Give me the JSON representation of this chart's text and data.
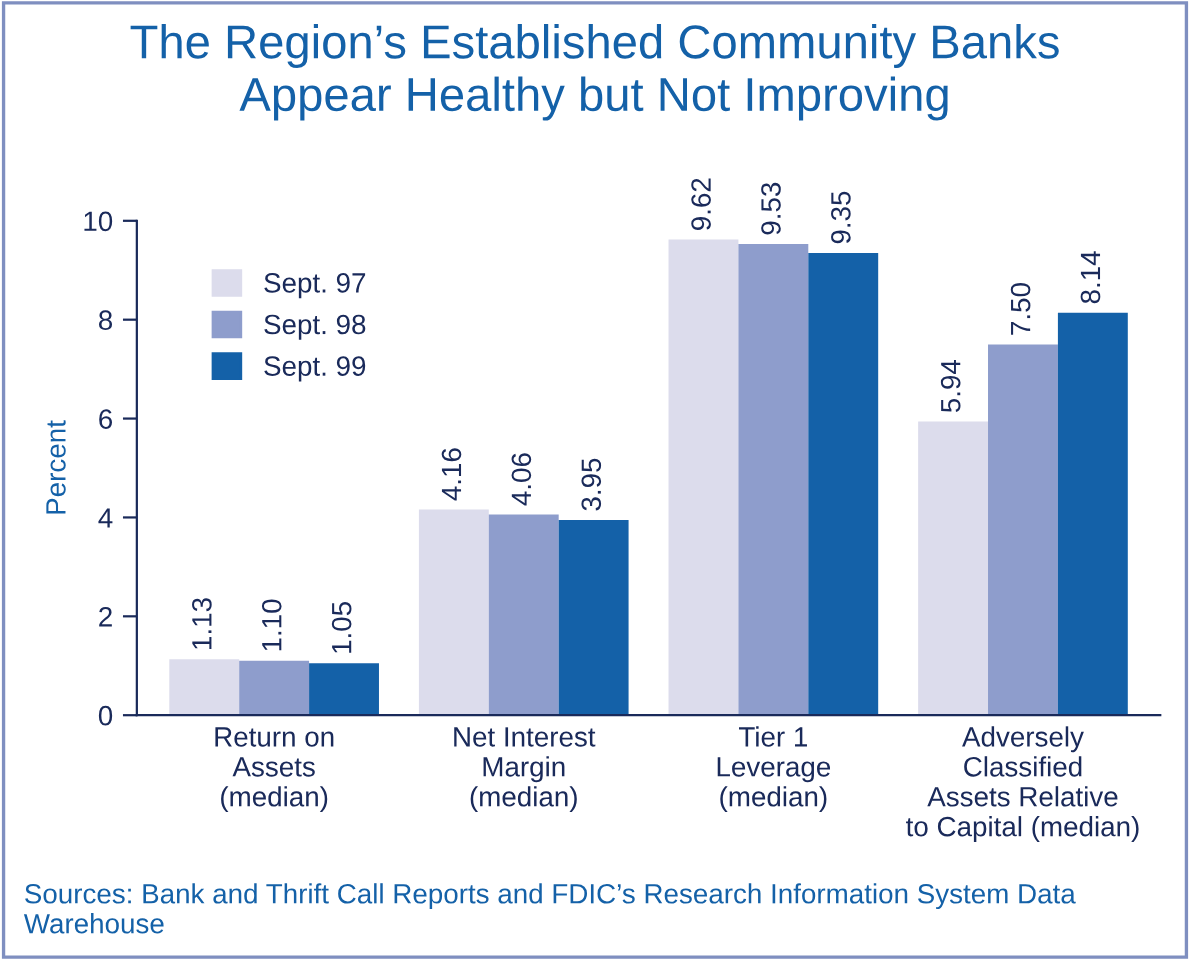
{
  "chart_data": {
    "type": "bar",
    "title": "The Region’s Established Community Banks\nAppear Healthy but Not Improving",
    "ylabel": "Percent",
    "categories": [
      "Return on\nAssets\n(median)",
      "Net Interest\nMargin\n(median)",
      "Tier 1\nLeverage\n(median)",
      "Adversely\nClassified\nAssets Relative\nto Capital (median)"
    ],
    "series": [
      {
        "name": "Sept. 97",
        "color": "#dcdcec",
        "values": [
          1.13,
          4.16,
          9.62,
          5.94
        ]
      },
      {
        "name": "Sept. 98",
        "color": "#8e9dcc",
        "values": [
          1.1,
          4.06,
          9.53,
          7.5
        ]
      },
      {
        "name": "Sept. 99",
        "color": "#1461a8",
        "values": [
          1.05,
          3.95,
          9.35,
          8.14
        ]
      }
    ],
    "value_labels": [
      [
        "1.13",
        "4.16",
        "9.62",
        "5.94"
      ],
      [
        "1.10",
        "4.06",
        "9.53",
        "7.50"
      ],
      [
        "1.05",
        "3.95",
        "9.35",
        "8.14"
      ]
    ],
    "ylim": [
      0,
      10
    ],
    "yticks": [
      0,
      2,
      4,
      6,
      8,
      10
    ],
    "grid": false,
    "legend": "top left",
    "annotations": [
      "Sources: Bank and Thrift Call Reports and FDIC’s Research Information System Data Warehouse"
    ]
  }
}
